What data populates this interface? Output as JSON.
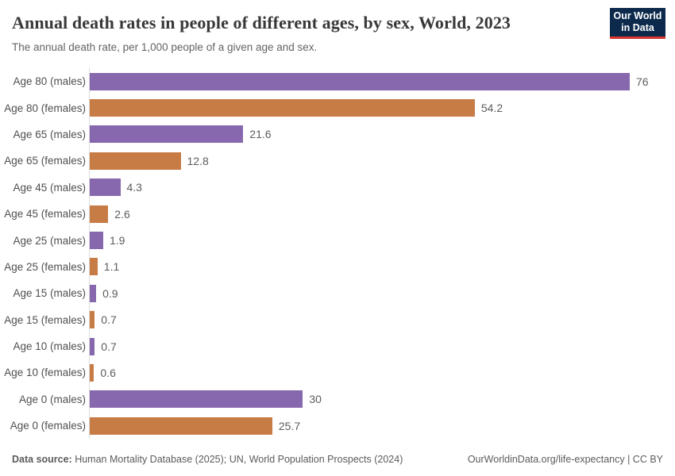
{
  "header": {
    "title": "Annual death rates in people of different ages, by sex, World, 2023",
    "subtitle": "The annual death rate, per 1,000 people of a given age and sex.",
    "logo": {
      "line1": "Our World",
      "line2": "in Data",
      "bg_color": "#0d2a4c",
      "accent_color": "#d9352c"
    }
  },
  "chart_data": {
    "type": "bar",
    "orientation": "horizontal",
    "title": "Annual death rates in people of different ages, by sex, World, 2023",
    "subtitle": "The annual death rate, per 1,000 people of a given age and sex.",
    "xlabel": "",
    "ylabel": "",
    "xlim": [
      0,
      76
    ],
    "grid": false,
    "value_labels_shown": true,
    "categories": [
      "Age 80 (males)",
      "Age 80 (females)",
      "Age 65 (males)",
      "Age 65 (females)",
      "Age 45 (males)",
      "Age 45 (females)",
      "Age 25 (males)",
      "Age 25 (females)",
      "Age 15 (males)",
      "Age 15 (females)",
      "Age 10 (males)",
      "Age 10 (females)",
      "Age 0 (males)",
      "Age 0 (females)"
    ],
    "values": [
      76,
      54.2,
      21.6,
      12.8,
      4.3,
      2.6,
      1.9,
      1.1,
      0.9,
      0.7,
      0.7,
      0.6,
      30,
      25.7
    ],
    "value_labels": [
      "76",
      "54.2",
      "21.6",
      "12.8",
      "4.3",
      "2.6",
      "1.9",
      "1.1",
      "0.9",
      "0.7",
      "0.7",
      "0.6",
      "30",
      "25.7"
    ],
    "colors": {
      "males": "#8768ae",
      "females": "#c87c45"
    },
    "axis_line_color": "#dcdcdc"
  },
  "footer": {
    "source_label": "Data source:",
    "source_text": " Human Mortality Database (2025); UN, World Population Prospects (2024)",
    "credit": "OurWorldinData.org/life-expectancy | CC BY"
  }
}
